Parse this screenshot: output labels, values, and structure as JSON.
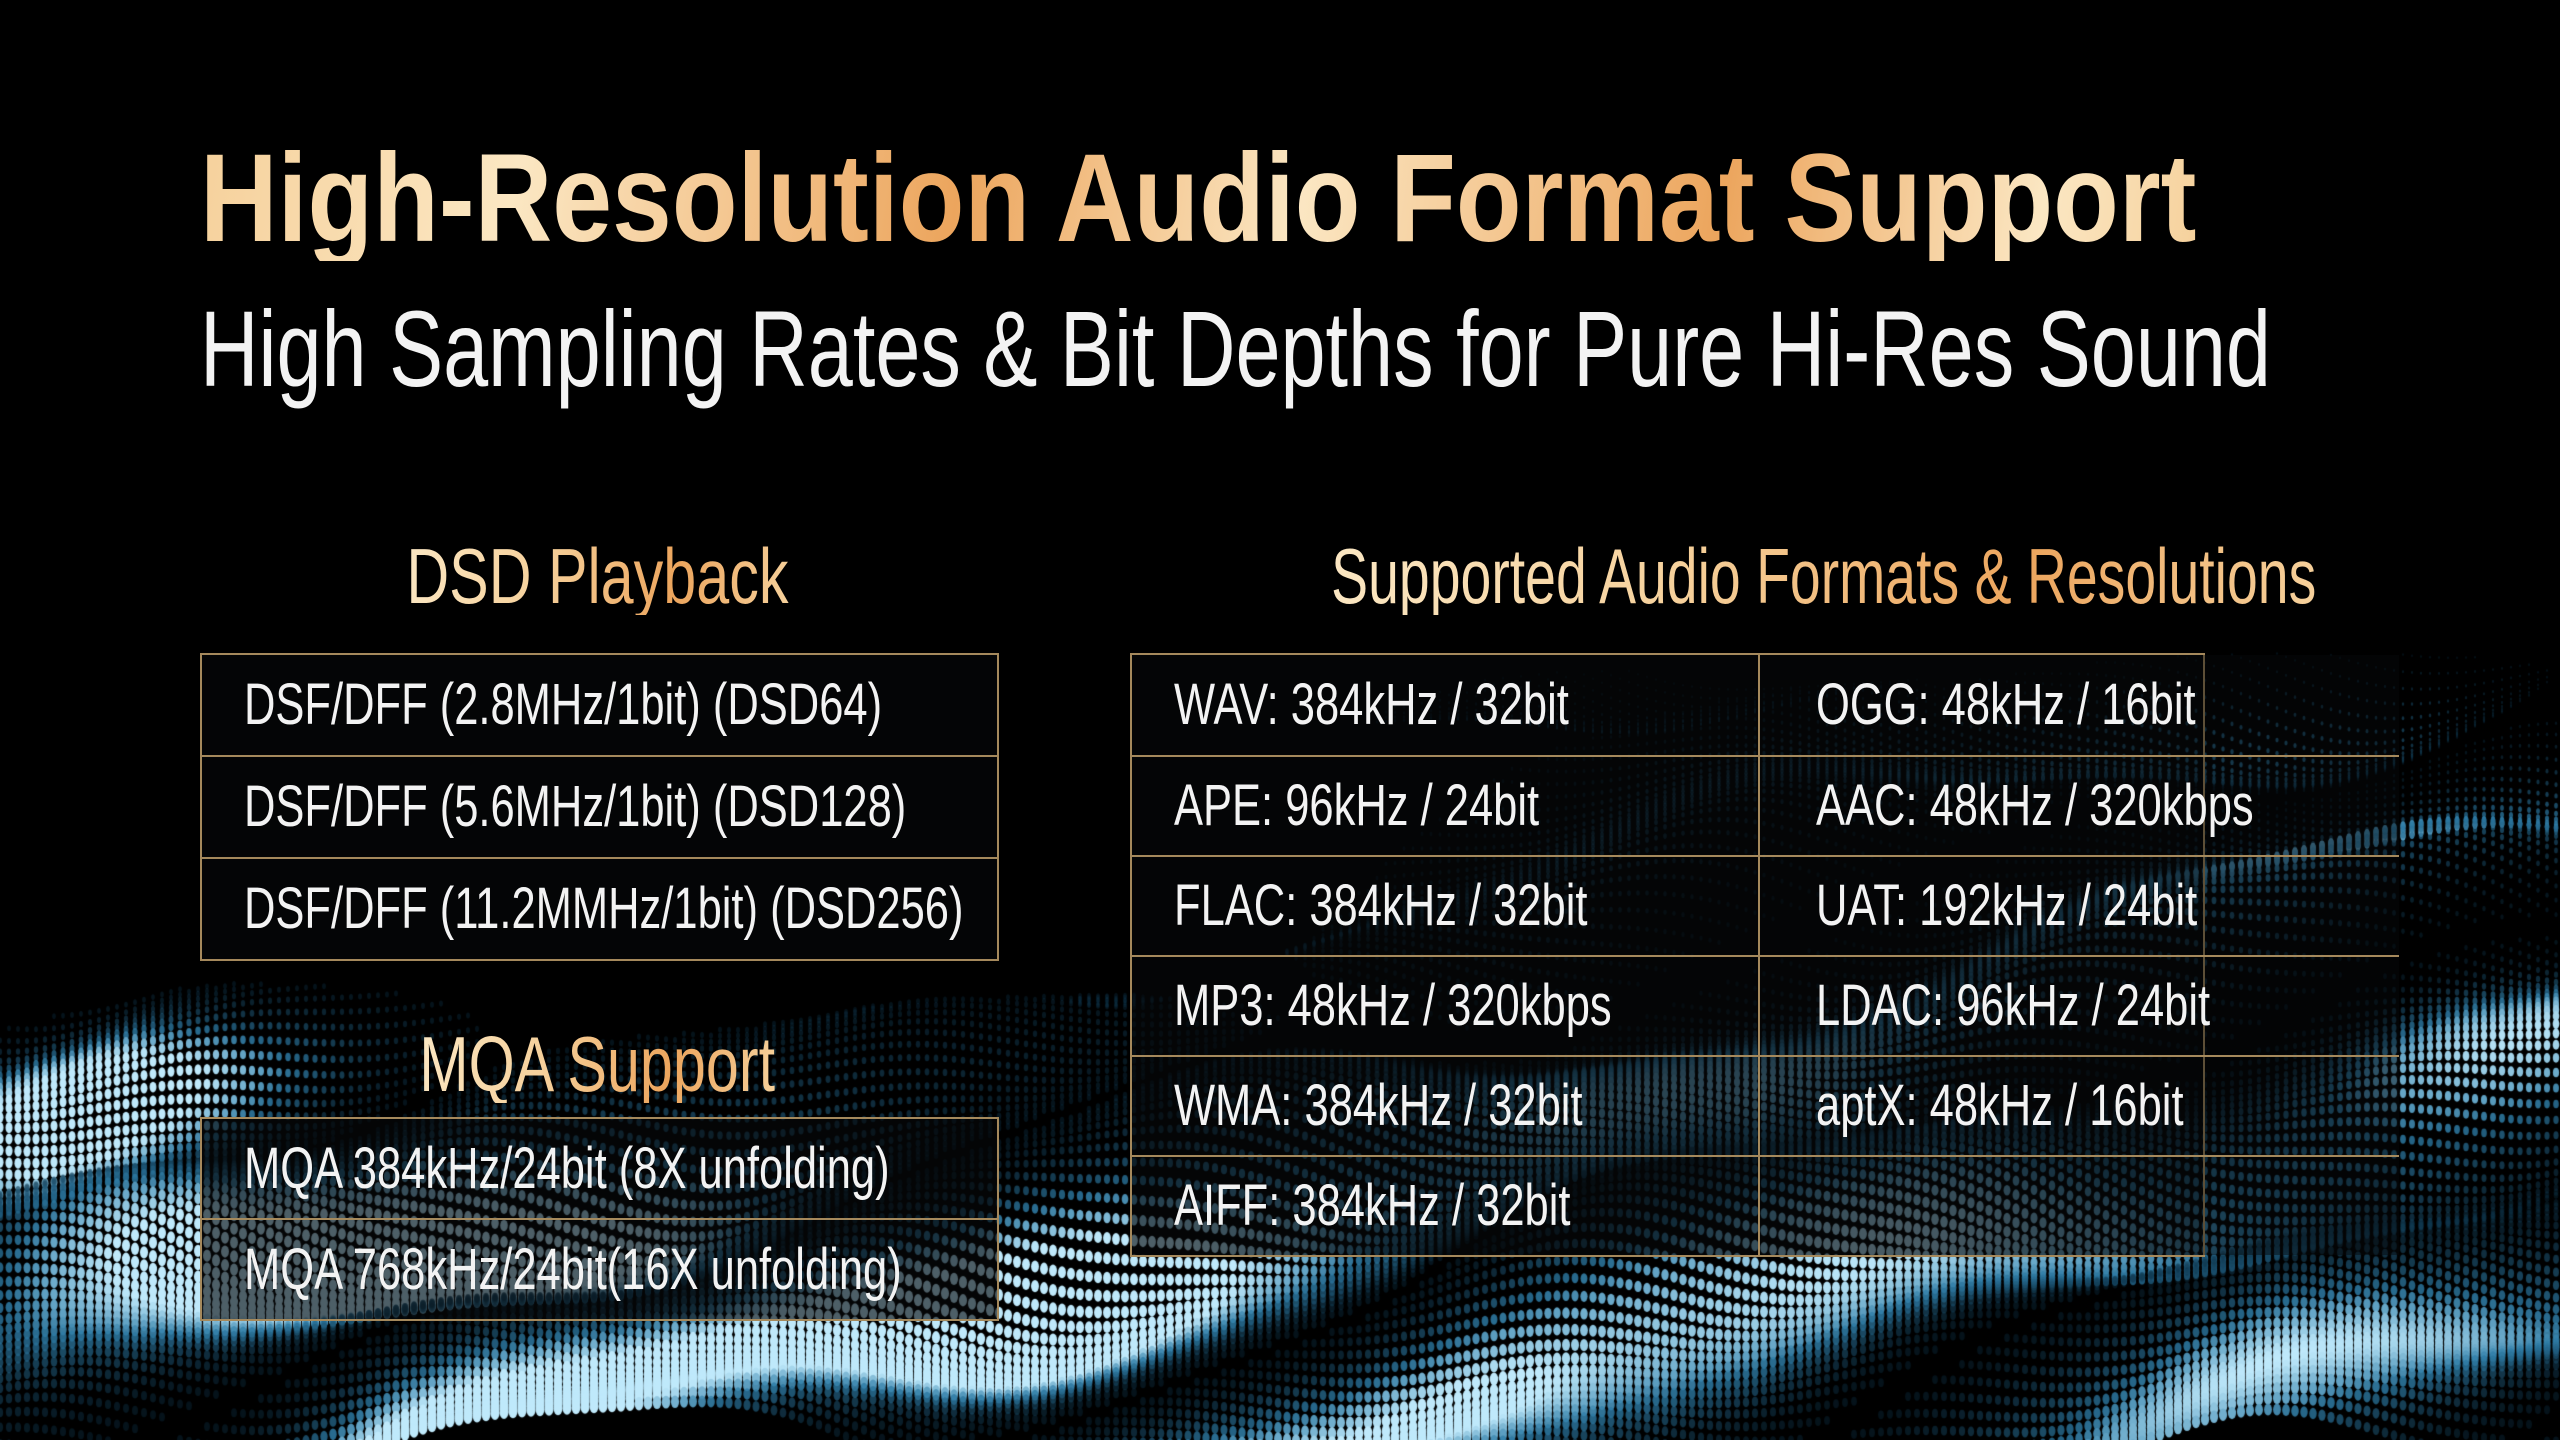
{
  "page": {
    "title": "High-Resolution Audio Format Support",
    "subtitle": "High Sampling Rates & Bit Depths for Pure Hi-Res Sound"
  },
  "dsd_playback": {
    "heading": "DSD Playback",
    "rows": [
      "DSF/DFF (2.8MHz/1bit) (DSD64)",
      "DSF/DFF (5.6MHz/1bit) (DSD128)",
      "DSF/DFF (11.2MMHz/1bit) (DSD256)"
    ]
  },
  "mqa_support": {
    "heading": "MQA Support",
    "rows": [
      "MQA 384kHz/24bit (8X unfolding)",
      "MQA 768kHz/24bit(16X unfolding)"
    ]
  },
  "formats": {
    "heading": "Supported Audio Formats & Resolutions",
    "rows": [
      [
        "WAV: 384kHz / 32bit",
        "OGG: 48kHz / 16bit"
      ],
      [
        "APE: 96kHz / 24bit",
        "AAC: 48kHz / 320kbps"
      ],
      [
        "FLAC: 384kHz / 32bit",
        "UAT: 192kHz / 24bit"
      ],
      [
        "MP3: 48kHz / 320kbps",
        "LDAC: 96kHz / 24bit"
      ],
      [
        "WMA: 384kHz / 32bit",
        "aptX: 48kHz / 16bit"
      ],
      [
        "AIFF: 384kHz / 32bit",
        ""
      ]
    ]
  },
  "theme": {
    "accent_light": "#fbe7c3",
    "accent_mid": "#f3c audio",
    "accent_deep": "#eca55d",
    "table_border": "#a5895c",
    "row_text": "#f3f3f3",
    "wave_dim": "#0c2e42",
    "wave_mid": "#2e7ca6",
    "wave_bright": "#bfe9fb"
  }
}
